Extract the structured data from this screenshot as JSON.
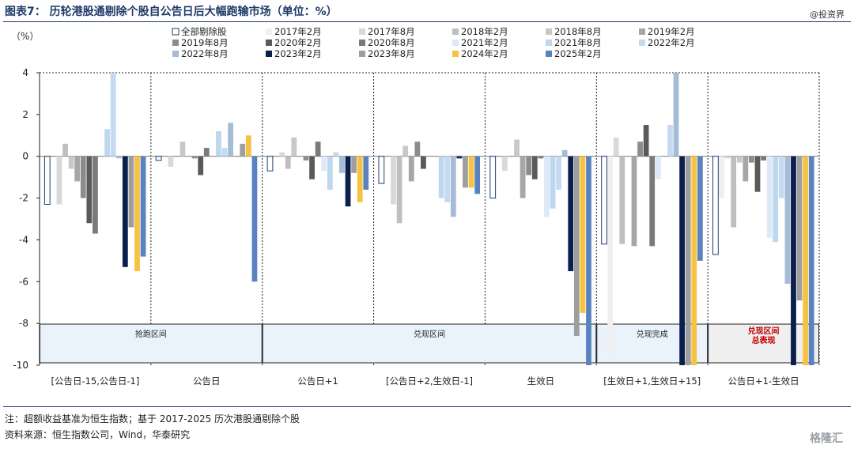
{
  "header": {
    "title": "图表7：  历轮港股通剔除个股自公告日后大幅跑输市场（单位：%）",
    "source_tag": "@投资界"
  },
  "footer": {
    "note": "注：超额收益基准为恒生指数；基于 2017-2025 历次港股通剔除个股",
    "source": "资料来源：恒生指数公司，Wind，华泰研究",
    "watermark": "格隆汇"
  },
  "chart_data": {
    "type": "bar",
    "y_unit_label": "（%）",
    "ylim": [
      -10,
      4
    ],
    "yticks": [
      4,
      2,
      0,
      -2,
      -4,
      -6,
      -8,
      -10
    ],
    "categories": [
      "[公告日-15,公告日-1]",
      "公告日",
      "公告日+1",
      "[公告日+2,生效日-1]",
      "生效日",
      "[生效日+1,生效日+15]",
      "公告日+1-生效日"
    ],
    "phase_labels": [
      {
        "text": "抢跑区间",
        "span": [
          0,
          1
        ],
        "highlight": false
      },
      {
        "text": "兑现区间",
        "span": [
          2,
          4
        ],
        "highlight": false
      },
      {
        "text": "兑现完成",
        "span": [
          5,
          5
        ],
        "highlight": false
      },
      {
        "text": "兑现区间\n总表现",
        "span": [
          6,
          6
        ],
        "highlight": true
      }
    ],
    "series": [
      {
        "name": "全部剔除股",
        "color": "#ffffff",
        "stroke": "#1f3f6e",
        "values": [
          -2.3,
          -0.2,
          -0.7,
          -1.3,
          -2.0,
          -4.2,
          -4.7
        ]
      },
      {
        "name": "2017年2月",
        "color": "#f0f0f0",
        "values": [
          0.0,
          0.0,
          0.0,
          0.0,
          0.0,
          -9.4,
          -2.0
        ]
      },
      {
        "name": "2017年8月",
        "color": "#d9d9d9",
        "values": [
          -2.3,
          -0.5,
          0.2,
          -2.3,
          -0.7,
          0.9,
          -0.1
        ]
      },
      {
        "name": "2018年2月",
        "color": "#bfbfbf",
        "values": [
          0.6,
          0.0,
          -0.6,
          -3.2,
          0.0,
          -4.2,
          -3.4
        ]
      },
      {
        "name": "2018年8月",
        "color": "#c8c8c8",
        "values": [
          -0.6,
          0.7,
          0.9,
          0.5,
          0.8,
          0.0,
          -0.3
        ]
      },
      {
        "name": "2019年2月",
        "color": "#a6a6a6",
        "values": [
          -1.2,
          0.0,
          0.0,
          -1.2,
          -2.0,
          -4.3,
          -1.2
        ]
      },
      {
        "name": "2019年8月",
        "color": "#8c8c8c",
        "values": [
          -2.0,
          -0.1,
          -0.2,
          0.7,
          -0.9,
          0.7,
          -0.3
        ]
      },
      {
        "name": "2020年2月",
        "color": "#5a5a5a",
        "values": [
          -3.2,
          -0.9,
          -1.1,
          -0.6,
          -1.1,
          1.5,
          -1.7
        ]
      },
      {
        "name": "2020年8月",
        "color": "#7a7a7a",
        "values": [
          -3.7,
          0.4,
          0.7,
          0.0,
          -0.1,
          -4.3,
          -0.2
        ]
      },
      {
        "name": "2021年2月",
        "color": "#dde9f7",
        "values": [
          0.0,
          0.0,
          -0.7,
          0.0,
          -2.9,
          -1.1,
          -3.9
        ]
      },
      {
        "name": "2021年8月",
        "color": "#bdd7ee",
        "values": [
          1.3,
          1.2,
          -1.6,
          -2.0,
          -2.5,
          0.0,
          -4.1
        ]
      },
      {
        "name": "2022年2月",
        "color": "#c5d9f1",
        "values": [
          4.0,
          0.4,
          0.2,
          -2.2,
          -1.6,
          1.5,
          -2.0
        ]
      },
      {
        "name": "2022年8月",
        "color": "#a6bcd6",
        "values": [
          -0.1,
          1.6,
          -0.8,
          -2.9,
          0.3,
          4.0,
          -6.1
        ]
      },
      {
        "name": "2023年2月",
        "color": "#0b1f4f",
        "values": [
          -5.3,
          0.0,
          -2.4,
          -0.1,
          -5.5,
          -10.0,
          -10.0
        ]
      },
      {
        "name": "2023年8月",
        "color": "#9e9e9e",
        "values": [
          -3.4,
          0.6,
          -0.8,
          -1.5,
          -8.6,
          -10.0,
          -6.9
        ]
      },
      {
        "name": "2024年2月",
        "color": "#f5c242",
        "values": [
          -5.5,
          1.0,
          -2.2,
          -1.5,
          -7.5,
          -10.0,
          -10.0
        ]
      },
      {
        "name": "2025年2月",
        "color": "#5b82c0",
        "values": [
          -4.8,
          -6.0,
          -1.6,
          -1.8,
          -10.0,
          -5.0,
          -10.0
        ]
      }
    ]
  }
}
